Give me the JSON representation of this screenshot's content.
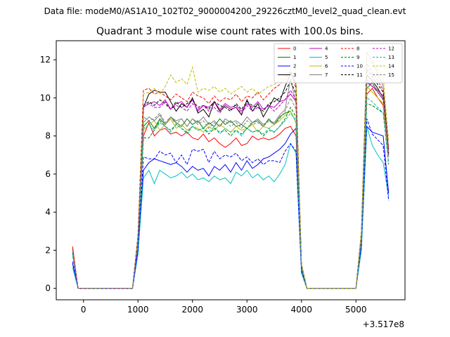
{
  "header": {
    "data_file": "Data file: modeM0/AS1A10_102T02_9000004200_29226cztM0_level2_quad_clean.evt"
  },
  "chart_data": {
    "type": "line",
    "title": "Quadrant 3 module wise count rates with 100.0s bins.",
    "xlabel": "",
    "ylabel": "",
    "x_offset_label": "+3.517e8",
    "xlim": [
      -500,
      5900
    ],
    "ylim": [
      -0.6,
      13.0
    ],
    "x_ticks": [
      0,
      1000,
      2000,
      3000,
      4000,
      5000
    ],
    "x_tick_labels": [
      "0",
      "1000",
      "2000",
      "3000",
      "4000",
      "5000"
    ],
    "y_ticks": [
      0,
      2,
      4,
      6,
      8,
      10,
      12
    ],
    "y_tick_labels": [
      "0",
      "2",
      "4",
      "6",
      "8",
      "10",
      "12"
    ],
    "grid": false,
    "legend_position": "top-right",
    "x": [
      -200,
      -100,
      0,
      100,
      200,
      300,
      400,
      500,
      600,
      700,
      800,
      900,
      1000,
      1100,
      1200,
      1300,
      1400,
      1500,
      1600,
      1700,
      1800,
      1900,
      2000,
      2100,
      2200,
      2300,
      2400,
      2500,
      2600,
      2700,
      2800,
      2900,
      3000,
      3100,
      3200,
      3300,
      3400,
      3500,
      3600,
      3700,
      3800,
      3900,
      4000,
      4100,
      4200,
      4300,
      4400,
      4500,
      4600,
      4700,
      4800,
      4900,
      5000,
      5100,
      5200,
      5300,
      5400,
      5500,
      5600
    ],
    "series": [
      {
        "name": "0",
        "color": "#ff0000",
        "dash": "solid",
        "values": [
          2.2,
          0,
          0,
          0,
          0,
          0,
          0,
          0,
          0,
          0,
          0,
          0,
          2.5,
          8.0,
          8.7,
          8.0,
          8.3,
          8.4,
          8.1,
          8.2,
          8.0,
          8.2,
          7.9,
          7.8,
          8.1,
          7.7,
          7.9,
          7.6,
          7.4,
          7.6,
          7.9,
          7.5,
          7.6,
          8.0,
          7.8,
          7.9,
          7.8,
          7.9,
          8.1,
          8.4,
          8.5,
          8.0,
          1.0,
          0,
          0,
          0,
          0,
          0,
          0,
          0,
          0,
          0,
          0,
          2.6,
          10.2,
          10.5,
          10.0,
          9.6,
          6.9
        ]
      },
      {
        "name": "1",
        "color": "#008000",
        "dash": "solid",
        "values": [
          1.8,
          0,
          0,
          0,
          0,
          0,
          0,
          0,
          0,
          0,
          0,
          0,
          2.6,
          8.5,
          8.8,
          8.4,
          8.9,
          8.6,
          9.0,
          8.7,
          8.5,
          8.9,
          8.6,
          8.8,
          8.4,
          8.7,
          8.5,
          8.9,
          8.6,
          8.8,
          8.5,
          8.6,
          8.4,
          8.7,
          8.8,
          8.5,
          8.9,
          8.6,
          9.0,
          9.2,
          9.3,
          8.7,
          1.1,
          0,
          0,
          0,
          0,
          0,
          0,
          0,
          0,
          0,
          0,
          2.8,
          10.5,
          10.8,
          10.3,
          9.9,
          7.1
        ]
      },
      {
        "name": "2",
        "color": "#0000ff",
        "dash": "solid",
        "values": [
          1.3,
          0,
          0,
          0,
          0,
          0,
          0,
          0,
          0,
          0,
          0,
          0,
          2.0,
          6.2,
          6.6,
          6.8,
          6.7,
          6.6,
          6.5,
          6.6,
          6.4,
          6.1,
          6.4,
          6.2,
          6.3,
          5.9,
          6.4,
          6.2,
          6.5,
          6.1,
          6.6,
          6.2,
          6.7,
          6.3,
          6.5,
          6.8,
          6.9,
          7.1,
          7.3,
          7.6,
          8.1,
          8.4,
          1.0,
          0,
          0,
          0,
          0,
          0,
          0,
          0,
          0,
          0,
          0,
          2.2,
          8.5,
          8.2,
          8.1,
          8.0,
          5.0
        ]
      },
      {
        "name": "3",
        "color": "#000000",
        "dash": "solid",
        "values": [
          2.0,
          0,
          0,
          0,
          0,
          0,
          0,
          0,
          0,
          0,
          0,
          0,
          2.7,
          9.5,
          10.2,
          10.4,
          10.3,
          10.3,
          9.8,
          9.3,
          9.7,
          9.5,
          10.0,
          9.2,
          9.4,
          9.0,
          9.8,
          9.3,
          9.6,
          9.4,
          9.5,
          9.1,
          9.9,
          9.3,
          9.7,
          9.0,
          9.5,
          10.0,
          9.8,
          10.6,
          11.3,
          10.7,
          1.2,
          0,
          0,
          0,
          0,
          0,
          0,
          0,
          0,
          0,
          0,
          2.9,
          11.2,
          10.9,
          10.5,
          10.0,
          7.0
        ]
      },
      {
        "name": "4",
        "color": "#bf00bf",
        "dash": "solid",
        "values": [
          1.9,
          0,
          0,
          0,
          0,
          0,
          0,
          0,
          0,
          0,
          0,
          0,
          2.6,
          9.5,
          9.7,
          9.8,
          9.6,
          9.9,
          9.4,
          9.7,
          9.8,
          9.5,
          9.9,
          9.3,
          9.6,
          9.5,
          9.8,
          9.4,
          9.7,
          9.5,
          9.6,
          9.3,
          9.7,
          9.5,
          9.8,
          9.4,
          9.6,
          9.5,
          9.8,
          9.9,
          10.2,
          9.8,
          1.2,
          0,
          0,
          0,
          0,
          0,
          0,
          0,
          0,
          0,
          0,
          2.8,
          10.8,
          10.6,
          10.4,
          10.1,
          7.2
        ]
      },
      {
        "name": "5",
        "color": "#00bfbf",
        "dash": "solid",
        "values": [
          1.1,
          0,
          0,
          0,
          0,
          0,
          0,
          0,
          0,
          0,
          0,
          0,
          1.8,
          5.8,
          6.2,
          5.5,
          6.2,
          6.0,
          5.8,
          5.9,
          6.1,
          5.8,
          6.0,
          5.7,
          5.8,
          5.6,
          5.9,
          5.7,
          5.8,
          5.5,
          6.1,
          5.9,
          6.2,
          5.8,
          6.0,
          5.7,
          5.9,
          5.6,
          6.0,
          6.5,
          7.6,
          7.1,
          0.8,
          0,
          0,
          0,
          0,
          0,
          0,
          0,
          0,
          0,
          0,
          2.0,
          8.5,
          7.5,
          7.0,
          6.6,
          4.8
        ]
      },
      {
        "name": "6",
        "color": "#bfbf00",
        "dash": "solid",
        "values": [
          1.9,
          0,
          0,
          0,
          0,
          0,
          0,
          0,
          0,
          0,
          0,
          0,
          2.5,
          8.3,
          8.6,
          8.8,
          8.3,
          8.6,
          8.9,
          8.4,
          8.6,
          8.3,
          8.5,
          8.4,
          8.2,
          8.5,
          8.3,
          8.6,
          8.4,
          8.2,
          8.5,
          8.3,
          8.4,
          8.6,
          8.2,
          8.5,
          8.4,
          8.6,
          8.8,
          9.1,
          9.3,
          8.7,
          1.1,
          0,
          0,
          0,
          0,
          0,
          0,
          0,
          0,
          0,
          0,
          2.7,
          10.6,
          10.3,
          10.0,
          9.7,
          6.9
        ]
      },
      {
        "name": "7",
        "color": "#808080",
        "dash": "solid",
        "values": [
          2.0,
          0,
          0,
          0,
          0,
          0,
          0,
          0,
          0,
          0,
          0,
          0,
          2.6,
          8.7,
          9.0,
          8.8,
          9.1,
          8.6,
          9.0,
          8.8,
          8.9,
          8.5,
          8.9,
          8.7,
          9.0,
          8.6,
          8.8,
          8.5,
          8.9,
          8.7,
          8.8,
          8.6,
          9.0,
          8.7,
          8.9,
          8.6,
          8.8,
          8.7,
          9.1,
          9.4,
          11.0,
          9.7,
          1.2,
          0,
          0,
          0,
          0,
          0,
          0,
          0,
          0,
          0,
          0,
          2.9,
          12.4,
          11.9,
          11.3,
          10.6,
          7.3
        ]
      },
      {
        "name": "8",
        "color": "#ff0000",
        "dash": "dashed",
        "values": [
          2.1,
          0,
          0,
          0,
          0,
          0,
          0,
          0,
          0,
          0,
          0,
          0,
          2.8,
          10.4,
          10.5,
          10.2,
          10.3,
          10.1,
          9.9,
          10.2,
          10.0,
          9.8,
          10.3,
          10.1,
          10.0,
          9.7,
          10.1,
          9.8,
          10.0,
          9.9,
          10.2,
          9.8,
          10.1,
          10.0,
          10.3,
          9.9,
          10.2,
          10.5,
          10.7,
          11.0,
          11.4,
          10.5,
          1.3,
          0,
          0,
          0,
          0,
          0,
          0,
          0,
          0,
          0,
          0,
          3.0,
          11.8,
          11.3,
          10.9,
          10.4,
          7.3
        ]
      },
      {
        "name": "9",
        "color": "#008000",
        "dash": "dashed",
        "values": [
          1.8,
          0,
          0,
          0,
          0,
          0,
          0,
          0,
          0,
          0,
          0,
          0,
          2.4,
          7.9,
          7.9,
          8.3,
          8.8,
          8.5,
          8.3,
          8.6,
          8.4,
          8.2,
          8.5,
          8.3,
          8.4,
          8.1,
          8.4,
          8.2,
          8.3,
          8.0,
          8.3,
          8.1,
          8.4,
          8.2,
          8.3,
          8.0,
          8.3,
          8.2,
          8.5,
          8.9,
          9.5,
          9.0,
          1.0,
          0,
          0,
          0,
          0,
          0,
          0,
          0,
          0,
          0,
          0,
          2.6,
          9.7,
          9.6,
          9.4,
          9.2,
          6.5
        ]
      },
      {
        "name": "10",
        "color": "#0000ff",
        "dash": "dashed",
        "values": [
          1.4,
          0,
          0,
          0,
          0,
          0,
          0,
          0,
          0,
          0,
          0,
          0,
          2.0,
          6.9,
          6.8,
          6.8,
          7.2,
          7.0,
          7.1,
          6.6,
          7.0,
          6.5,
          7.3,
          7.2,
          7.3,
          6.6,
          7.2,
          6.8,
          7.0,
          6.9,
          7.1,
          6.7,
          6.9,
          6.6,
          6.8,
          6.5,
          6.7,
          6.7,
          6.6,
          7.2,
          7.6,
          7.2,
          0.9,
          0,
          0,
          0,
          0,
          0,
          0,
          0,
          0,
          0,
          0,
          2.3,
          8.9,
          8.1,
          7.8,
          7.5,
          4.6
        ]
      },
      {
        "name": "11",
        "color": "#000000",
        "dash": "dashed",
        "values": [
          1.9,
          0,
          0,
          0,
          0,
          0,
          0,
          0,
          0,
          0,
          0,
          0,
          2.6,
          9.6,
          9.8,
          9.6,
          9.9,
          9.7,
          9.4,
          9.8,
          9.5,
          9.7,
          9.9,
          9.5,
          9.6,
          9.4,
          9.8,
          9.6,
          9.5,
          9.3,
          9.7,
          9.4,
          9.8,
          9.6,
          9.5,
          9.3,
          9.7,
          9.8,
          10.0,
          10.3,
          10.9,
          10.2,
          1.2,
          0,
          0,
          0,
          0,
          0,
          0,
          0,
          0,
          0,
          0,
          2.8,
          11.5,
          11.1,
          10.7,
          10.3,
          7.1
        ]
      },
      {
        "name": "12",
        "color": "#bf00bf",
        "dash": "dashed",
        "values": [
          1.9,
          0,
          0,
          0,
          0,
          0,
          0,
          0,
          0,
          0,
          0,
          0,
          2.5,
          9.6,
          9.7,
          9.5,
          9.5,
          9.8,
          9.4,
          9.6,
          9.5,
          9.3,
          9.7,
          9.4,
          9.6,
          9.3,
          9.5,
          9.2,
          9.6,
          9.4,
          9.5,
          9.2,
          9.6,
          9.3,
          9.5,
          9.4,
          9.6,
          9.3,
          9.6,
          9.9,
          10.4,
          9.9,
          1.2,
          0,
          0,
          0,
          0,
          0,
          0,
          0,
          0,
          0,
          0,
          2.8,
          10.9,
          10.6,
          10.3,
          9.9,
          7.0
        ]
      },
      {
        "name": "13",
        "color": "#00bfbf",
        "dash": "dashed",
        "values": [
          1.8,
          0,
          0,
          0,
          0,
          0,
          0,
          0,
          0,
          0,
          0,
          0,
          2.4,
          8.4,
          8.6,
          8.3,
          8.7,
          8.5,
          8.2,
          8.6,
          8.4,
          8.1,
          8.5,
          8.3,
          8.4,
          8.2,
          8.5,
          8.1,
          8.4,
          8.2,
          8.3,
          8.0,
          8.4,
          8.2,
          8.3,
          8.1,
          8.4,
          8.2,
          8.5,
          8.8,
          9.2,
          8.8,
          1.1,
          0,
          0,
          0,
          0,
          0,
          0,
          0,
          0,
          0,
          0,
          2.6,
          10.0,
          9.8,
          9.5,
          9.2,
          6.6
        ]
      },
      {
        "name": "14",
        "color": "#bfbf00",
        "dash": "dashed",
        "values": [
          2.0,
          0,
          0,
          0,
          0,
          0,
          0,
          0,
          0,
          0,
          0,
          0,
          2.8,
          10.2,
          10.3,
          10.5,
          10.2,
          10.6,
          11.2,
          10.8,
          11.0,
          10.7,
          11.6,
          10.3,
          10.5,
          10.4,
          10.6,
          10.3,
          10.5,
          10.2,
          10.4,
          10.6,
          10.3,
          10.5,
          10.2,
          10.4,
          10.6,
          10.7,
          10.9,
          11.2,
          11.5,
          10.8,
          1.3,
          0,
          0,
          0,
          0,
          0,
          0,
          0,
          0,
          0,
          0,
          3.0,
          12.0,
          11.8,
          11.5,
          11.1,
          7.8
        ]
      },
      {
        "name": "15",
        "color": "#808080",
        "dash": "dashed",
        "values": [
          2.0,
          0,
          0,
          0,
          0,
          0,
          0,
          0,
          0,
          0,
          0,
          0,
          2.6,
          9.0,
          8.8,
          8.9,
          9.2,
          8.7,
          9.0,
          8.6,
          8.9,
          8.5,
          8.9,
          8.6,
          8.8,
          8.4,
          8.7,
          8.5,
          8.8,
          8.5,
          8.7,
          8.4,
          8.8,
          8.6,
          8.7,
          8.5,
          8.8,
          8.6,
          8.9,
          9.3,
          10.0,
          9.4,
          1.2,
          0,
          0,
          0,
          0,
          0,
          0,
          0,
          0,
          0,
          0,
          2.7,
          11.0,
          10.7,
          10.4,
          10.0,
          7.1
        ]
      }
    ]
  }
}
